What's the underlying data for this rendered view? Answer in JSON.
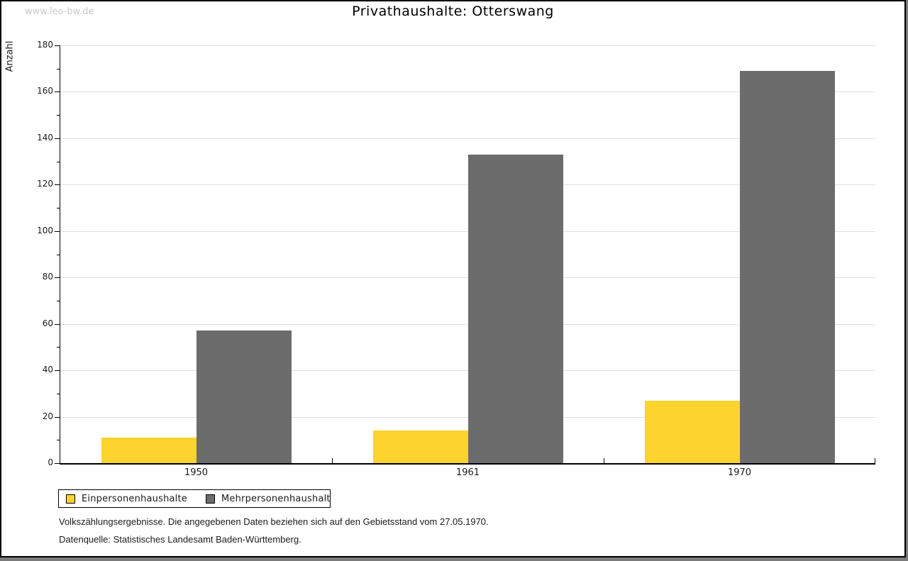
{
  "watermark": "www.leo-bw.de",
  "title": "Privathaushalte: Otterswang",
  "chart_data": {
    "type": "bar",
    "title": "Privathaushalte: Otterswang",
    "categories": [
      "1950",
      "1961",
      "1970"
    ],
    "series": [
      {
        "name": "Einpersonenhaushalte",
        "color": "#fdd32d",
        "values": [
          11,
          14,
          27
        ]
      },
      {
        "name": "Mehrpersonenhaushalte",
        "color": "#6c6c6c",
        "values": [
          57,
          133,
          169
        ]
      }
    ],
    "xlabel": "",
    "ylabel": "Anzahl",
    "ylim": [
      0,
      180
    ],
    "ytick_step": 20,
    "yminor_step": 10,
    "grid": true,
    "gridline_color": "#e0e0e0",
    "legend_position": "bottom-left"
  },
  "footnotes": [
    "Volkszählungsergebnisse. Die angegebenen Daten beziehen sich auf den Gebietsstand vom 27.05.1970.",
    "Datenquelle: Statistisches Landesamt Baden-Württemberg."
  ]
}
